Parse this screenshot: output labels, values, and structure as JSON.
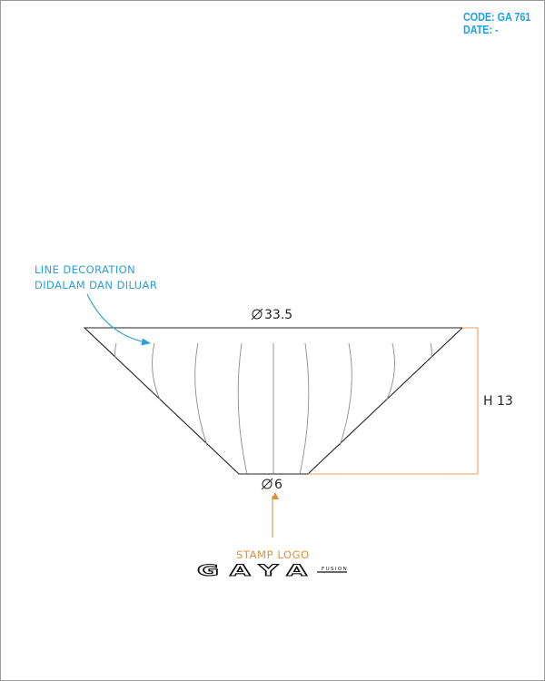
{
  "header": {
    "code_label": "CODE:",
    "code_value": "GA 761",
    "date_label": "DATE:",
    "date_value": "-"
  },
  "annotations": {
    "decoration_line1": "LINE DECORATION",
    "decoration_line2": "DIDALAM DAN DILUAR",
    "stamp": "STAMP LOGO"
  },
  "dimensions": {
    "top_diameter": "33.5",
    "bottom_diameter": "6",
    "height": "H 13",
    "diameter_symbol": "⌀"
  },
  "logo": {
    "brand": "GAYA",
    "sub": "FUSION"
  },
  "colors": {
    "header": "#1ea0e6",
    "annotation_blue": "#2b9fd6",
    "annotation_orange": "#e0903a",
    "dimension_orange": "#e9a05a",
    "outline": "#222222",
    "decoration": "#8c8c8c"
  }
}
